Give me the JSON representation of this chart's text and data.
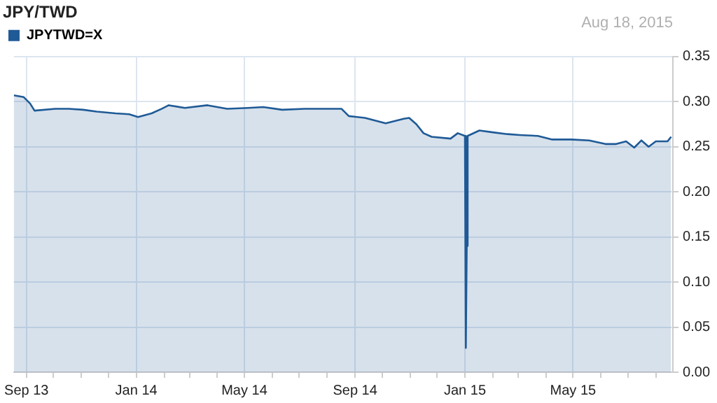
{
  "chart_data": {
    "type": "area",
    "title": "JPY/TWD",
    "annotations": [
      "Aug 18, 2015"
    ],
    "legend": "top left",
    "grid": true,
    "x": [
      "2013-08-18",
      "2013-08-29",
      "2013-09-05",
      "2013-09-10",
      "2013-10-03",
      "2013-10-18",
      "2013-11-03",
      "2013-11-18",
      "2013-12-09",
      "2013-12-24",
      "2014-01-03",
      "2014-01-18",
      "2014-01-29",
      "2014-02-06",
      "2014-02-24",
      "2014-03-21",
      "2014-04-12",
      "2014-05-05",
      "2014-05-22",
      "2014-06-12",
      "2014-07-07",
      "2014-08-02",
      "2014-08-17",
      "2014-08-25",
      "2014-09-12",
      "2014-10-05",
      "2014-10-25",
      "2014-10-31",
      "2014-11-08",
      "2014-11-16",
      "2014-11-25",
      "2014-12-16",
      "2014-12-24",
      "2015-01-01",
      "2015-01-02",
      "2015-01-03",
      "2015-01-04",
      "2015-01-17",
      "2015-02-01",
      "2015-02-17",
      "2015-03-03",
      "2015-03-23",
      "2015-04-08",
      "2015-04-29",
      "2015-05-19",
      "2015-06-06",
      "2015-06-18",
      "2015-06-29",
      "2015-07-08",
      "2015-07-16",
      "2015-07-24",
      "2015-08-01",
      "2015-08-14",
      "2015-08-18"
    ],
    "series": [
      {
        "name": "JPYTWD=X",
        "color": "#1f5a96",
        "values": [
          0.307,
          0.305,
          0.298,
          0.29,
          0.292,
          0.292,
          0.291,
          0.289,
          0.287,
          0.286,
          0.283,
          0.287,
          0.292,
          0.296,
          0.293,
          0.296,
          0.292,
          0.293,
          0.294,
          0.291,
          0.292,
          0.292,
          0.292,
          0.284,
          0.282,
          0.276,
          0.281,
          0.282,
          0.275,
          0.265,
          0.261,
          0.259,
          0.265,
          0.262,
          0.027,
          0.14,
          0.262,
          0.268,
          0.266,
          0.264,
          0.263,
          0.262,
          0.258,
          0.258,
          0.257,
          0.253,
          0.253,
          0.256,
          0.249,
          0.257,
          0.25,
          0.256,
          0.256,
          0.261
        ]
      }
    ],
    "xlim": [
      "2013-08-18",
      "2015-08-20"
    ],
    "xticks": [
      {
        "value": "2013-09-01",
        "label": "Sep 13"
      },
      {
        "value": "2013-10-01",
        "label": null
      },
      {
        "value": "2013-11-01",
        "label": null
      },
      {
        "value": "2013-12-01",
        "label": null
      },
      {
        "value": "2014-01-01",
        "label": "Jan 14"
      },
      {
        "value": "2014-02-01",
        "label": null
      },
      {
        "value": "2014-03-01",
        "label": null
      },
      {
        "value": "2014-04-01",
        "label": null
      },
      {
        "value": "2014-05-01",
        "label": "May 14"
      },
      {
        "value": "2014-06-01",
        "label": null
      },
      {
        "value": "2014-07-01",
        "label": null
      },
      {
        "value": "2014-08-01",
        "label": null
      },
      {
        "value": "2014-09-01",
        "label": "Sep 14"
      },
      {
        "value": "2014-10-01",
        "label": null
      },
      {
        "value": "2014-11-01",
        "label": null
      },
      {
        "value": "2014-12-01",
        "label": null
      },
      {
        "value": "2015-01-01",
        "label": "Jan 15"
      },
      {
        "value": "2015-02-01",
        "label": null
      },
      {
        "value": "2015-03-01",
        "label": null
      },
      {
        "value": "2015-04-01",
        "label": null
      },
      {
        "value": "2015-05-01",
        "label": "May 15"
      },
      {
        "value": "2015-06-01",
        "label": null
      },
      {
        "value": "2015-07-01",
        "label": null
      },
      {
        "value": "2015-08-01",
        "label": null
      }
    ],
    "ylim": [
      0,
      0.35
    ],
    "yticks": [
      {
        "value": 0,
        "label": "0.00"
      },
      {
        "value": 0.05,
        "label": "0.05"
      },
      {
        "value": 0.1,
        "label": "0.10"
      },
      {
        "value": 0.15,
        "label": "0.15"
      },
      {
        "value": 0.2,
        "label": "0.20"
      },
      {
        "value": 0.25,
        "label": "0.25"
      },
      {
        "value": 0.3,
        "label": "0.30"
      },
      {
        "value": 0.35,
        "label": "0.35"
      }
    ]
  }
}
